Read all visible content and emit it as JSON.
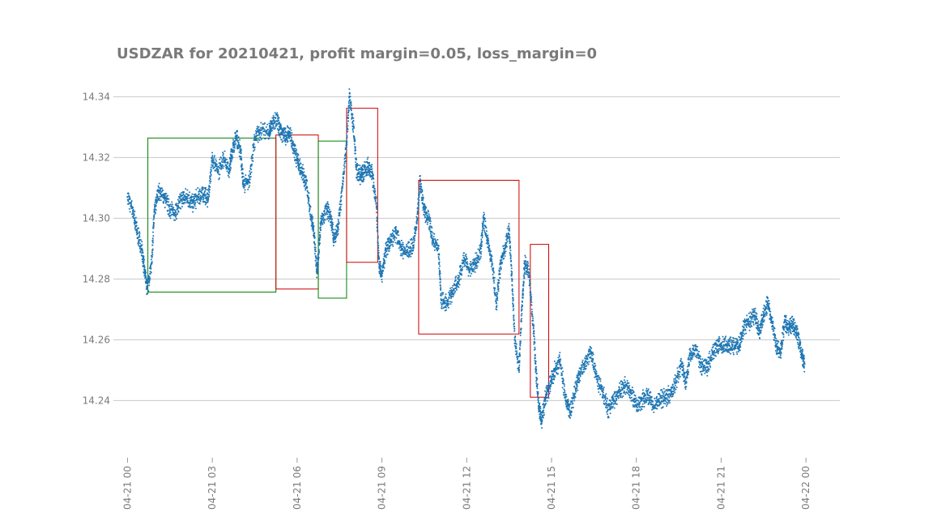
{
  "chart_data": {
    "type": "scatter",
    "title": "USDZAR for 20210421, profit margin=0.05, loss_margin=0",
    "xlabel": "",
    "ylabel": "",
    "x_unit": "hours since 2021-04-21 00:00",
    "xlim": [
      -0.5,
      25.2
    ],
    "ylim": [
      14.2225,
      14.3465
    ],
    "grid": "horizontal",
    "legend": "none",
    "y_ticks": [
      {
        "value": 14.24,
        "label": "14.24"
      },
      {
        "value": 14.26,
        "label": "14.26"
      },
      {
        "value": 14.28,
        "label": "14.28"
      },
      {
        "value": 14.3,
        "label": "14.30"
      },
      {
        "value": 14.32,
        "label": "14.32"
      },
      {
        "value": 14.34,
        "label": "14.34"
      }
    ],
    "x_ticks": [
      {
        "value": 0,
        "label": "04-21 00"
      },
      {
        "value": 3,
        "label": "04-21 03"
      },
      {
        "value": 6,
        "label": "04-21 06"
      },
      {
        "value": 9,
        "label": "04-21 09"
      },
      {
        "value": 12,
        "label": "04-21 12"
      },
      {
        "value": 15,
        "label": "04-21 15"
      },
      {
        "value": 18,
        "label": "04-21 18"
      },
      {
        "value": 21,
        "label": "04-21 21"
      },
      {
        "value": 24,
        "label": "04-22 00"
      }
    ],
    "series": [
      {
        "name": "USDZAR price",
        "color": "#1f77b4",
        "points": [
          [
            0.0,
            14.307
          ],
          [
            0.2,
            14.302
          ],
          [
            0.35,
            14.295
          ],
          [
            0.5,
            14.29
          ],
          [
            0.6,
            14.283
          ],
          [
            0.7,
            14.277
          ],
          [
            0.85,
            14.285
          ],
          [
            0.95,
            14.302
          ],
          [
            1.1,
            14.309
          ],
          [
            1.3,
            14.307
          ],
          [
            1.5,
            14.303
          ],
          [
            1.7,
            14.302
          ],
          [
            1.9,
            14.306
          ],
          [
            2.1,
            14.307
          ],
          [
            2.3,
            14.305
          ],
          [
            2.5,
            14.307
          ],
          [
            2.7,
            14.308
          ],
          [
            2.85,
            14.306
          ],
          [
            3.0,
            14.32
          ],
          [
            3.2,
            14.315
          ],
          [
            3.4,
            14.32
          ],
          [
            3.6,
            14.316
          ],
          [
            3.7,
            14.322
          ],
          [
            3.85,
            14.327
          ],
          [
            4.0,
            14.322
          ],
          [
            4.1,
            14.311
          ],
          [
            4.3,
            14.312
          ],
          [
            4.5,
            14.326
          ],
          [
            4.7,
            14.329
          ],
          [
            5.0,
            14.328
          ],
          [
            5.1,
            14.331
          ],
          [
            5.3,
            14.332
          ],
          [
            5.45,
            14.328
          ],
          [
            5.6,
            14.327
          ],
          [
            5.75,
            14.328
          ],
          [
            5.9,
            14.322
          ],
          [
            6.05,
            14.318
          ],
          [
            6.2,
            14.315
          ],
          [
            6.35,
            14.31
          ],
          [
            6.5,
            14.3
          ],
          [
            6.6,
            14.295
          ],
          [
            6.7,
            14.282
          ],
          [
            6.75,
            14.287
          ],
          [
            6.85,
            14.299
          ],
          [
            7.05,
            14.303
          ],
          [
            7.2,
            14.3
          ],
          [
            7.3,
            14.293
          ],
          [
            7.45,
            14.297
          ],
          [
            7.6,
            14.31
          ],
          [
            7.75,
            14.325
          ],
          [
            7.85,
            14.34
          ],
          [
            8.0,
            14.33
          ],
          [
            8.1,
            14.316
          ],
          [
            8.25,
            14.314
          ],
          [
            8.35,
            14.315
          ],
          [
            8.5,
            14.317
          ],
          [
            8.65,
            14.315
          ],
          [
            8.8,
            14.305
          ],
          [
            8.9,
            14.285
          ],
          [
            9.0,
            14.281
          ],
          [
            9.15,
            14.29
          ],
          [
            9.3,
            14.292
          ],
          [
            9.5,
            14.295
          ],
          [
            9.7,
            14.29
          ],
          [
            9.9,
            14.289
          ],
          [
            10.1,
            14.291
          ],
          [
            10.25,
            14.3
          ],
          [
            10.35,
            14.312
          ],
          [
            10.5,
            14.302
          ],
          [
            10.65,
            14.3
          ],
          [
            10.8,
            14.293
          ],
          [
            11.0,
            14.29
          ],
          [
            11.1,
            14.273
          ],
          [
            11.3,
            14.272
          ],
          [
            11.5,
            14.276
          ],
          [
            11.7,
            14.279
          ],
          [
            11.9,
            14.287
          ],
          [
            12.1,
            14.283
          ],
          [
            12.3,
            14.285
          ],
          [
            12.5,
            14.29
          ],
          [
            12.6,
            14.3
          ],
          [
            12.75,
            14.292
          ],
          [
            12.9,
            14.285
          ],
          [
            13.05,
            14.272
          ],
          [
            13.2,
            14.285
          ],
          [
            13.35,
            14.29
          ],
          [
            13.5,
            14.296
          ],
          [
            13.6,
            14.28
          ],
          [
            13.7,
            14.26
          ],
          [
            13.85,
            14.25
          ],
          [
            13.95,
            14.27
          ],
          [
            14.05,
            14.285
          ],
          [
            14.2,
            14.282
          ],
          [
            14.35,
            14.265
          ],
          [
            14.45,
            14.25
          ],
          [
            14.55,
            14.238
          ],
          [
            14.65,
            14.233
          ],
          [
            14.8,
            14.242
          ],
          [
            14.95,
            14.245
          ],
          [
            15.1,
            14.25
          ],
          [
            15.3,
            14.253
          ],
          [
            15.5,
            14.24
          ],
          [
            15.65,
            14.236
          ],
          [
            15.85,
            14.244
          ],
          [
            16.0,
            14.249
          ],
          [
            16.2,
            14.253
          ],
          [
            16.4,
            14.256
          ],
          [
            16.6,
            14.247
          ],
          [
            16.8,
            14.243
          ],
          [
            17.0,
            14.237
          ],
          [
            17.2,
            14.24
          ],
          [
            17.4,
            14.243
          ],
          [
            17.6,
            14.245
          ],
          [
            17.8,
            14.243
          ],
          [
            18.0,
            14.238
          ],
          [
            18.2,
            14.24
          ],
          [
            18.4,
            14.242
          ],
          [
            18.6,
            14.238
          ],
          [
            18.8,
            14.24
          ],
          [
            19.0,
            14.241
          ],
          [
            19.2,
            14.242
          ],
          [
            19.4,
            14.246
          ],
          [
            19.6,
            14.252
          ],
          [
            19.75,
            14.246
          ],
          [
            19.9,
            14.255
          ],
          [
            20.1,
            14.257
          ],
          [
            20.3,
            14.251
          ],
          [
            20.5,
            14.251
          ],
          [
            20.7,
            14.256
          ],
          [
            20.9,
            14.258
          ],
          [
            21.1,
            14.258
          ],
          [
            21.3,
            14.258
          ],
          [
            21.5,
            14.258
          ],
          [
            21.65,
            14.258
          ],
          [
            21.8,
            14.264
          ],
          [
            22.0,
            14.266
          ],
          [
            22.2,
            14.268
          ],
          [
            22.35,
            14.262
          ],
          [
            22.5,
            14.268
          ],
          [
            22.65,
            14.272
          ],
          [
            22.8,
            14.266
          ],
          [
            22.95,
            14.258
          ],
          [
            23.1,
            14.256
          ],
          [
            23.25,
            14.266
          ],
          [
            23.4,
            14.264
          ],
          [
            23.55,
            14.265
          ],
          [
            23.7,
            14.262
          ],
          [
            23.85,
            14.255
          ],
          [
            23.95,
            14.252
          ]
        ]
      }
    ],
    "boxes": [
      {
        "color": "#008000",
        "x0": 0.72,
        "x1": 5.25,
        "y0": 14.2757,
        "y1": 14.3264
      },
      {
        "color": "#cc0000",
        "x0": 5.25,
        "x1": 6.75,
        "y0": 14.2767,
        "y1": 14.3274
      },
      {
        "color": "#008000",
        "x0": 6.75,
        "x1": 7.75,
        "y0": 14.2737,
        "y1": 14.3254
      },
      {
        "color": "#cc0000",
        "x0": 7.75,
        "x1": 8.85,
        "y0": 14.2855,
        "y1": 14.3362
      },
      {
        "color": "#cc0000",
        "x0": 10.3,
        "x1": 13.85,
        "y0": 14.2619,
        "y1": 14.3125
      },
      {
        "color": "#cc0000",
        "x0": 14.25,
        "x1": 14.9,
        "y0": 14.2411,
        "y1": 14.2914
      }
    ]
  }
}
